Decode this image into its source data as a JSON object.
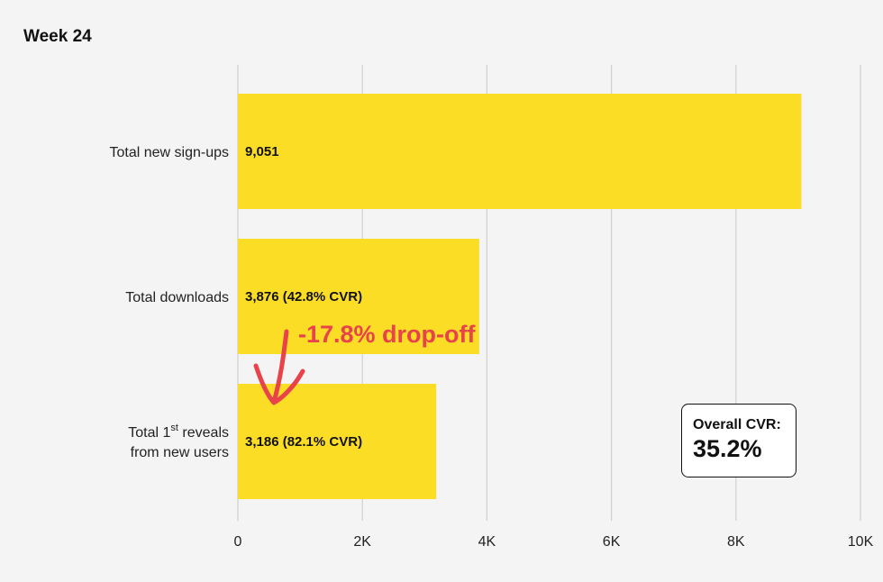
{
  "chart_data": {
    "type": "bar",
    "orientation": "horizontal",
    "title": "Week 24",
    "categories": [
      {
        "lines": [
          "Total new sign-ups"
        ]
      },
      {
        "lines": [
          "Total downloads"
        ]
      },
      {
        "lines": [
          "Total 1st reveals",
          "from new users"
        ]
      }
    ],
    "values": [
      9051,
      3876,
      3186
    ],
    "bar_labels": [
      "9,051",
      "3,876 (42.8% CVR)",
      "3,186 (82.1% CVR)"
    ],
    "xlim": [
      0,
      10000
    ],
    "xticks": [
      0,
      2000,
      4000,
      6000,
      8000,
      10000
    ],
    "xtick_labels": [
      "0",
      "2K",
      "4K",
      "6K",
      "8K",
      "10K"
    ],
    "grid": "vertical",
    "annotation": "-17.8% drop-off",
    "colors": {
      "bar": "#fcdd26",
      "annotation": "#e8424a",
      "grid": "#d0d0d0"
    }
  },
  "callout": {
    "label": "Overall CVR:",
    "value": "35.2%"
  }
}
